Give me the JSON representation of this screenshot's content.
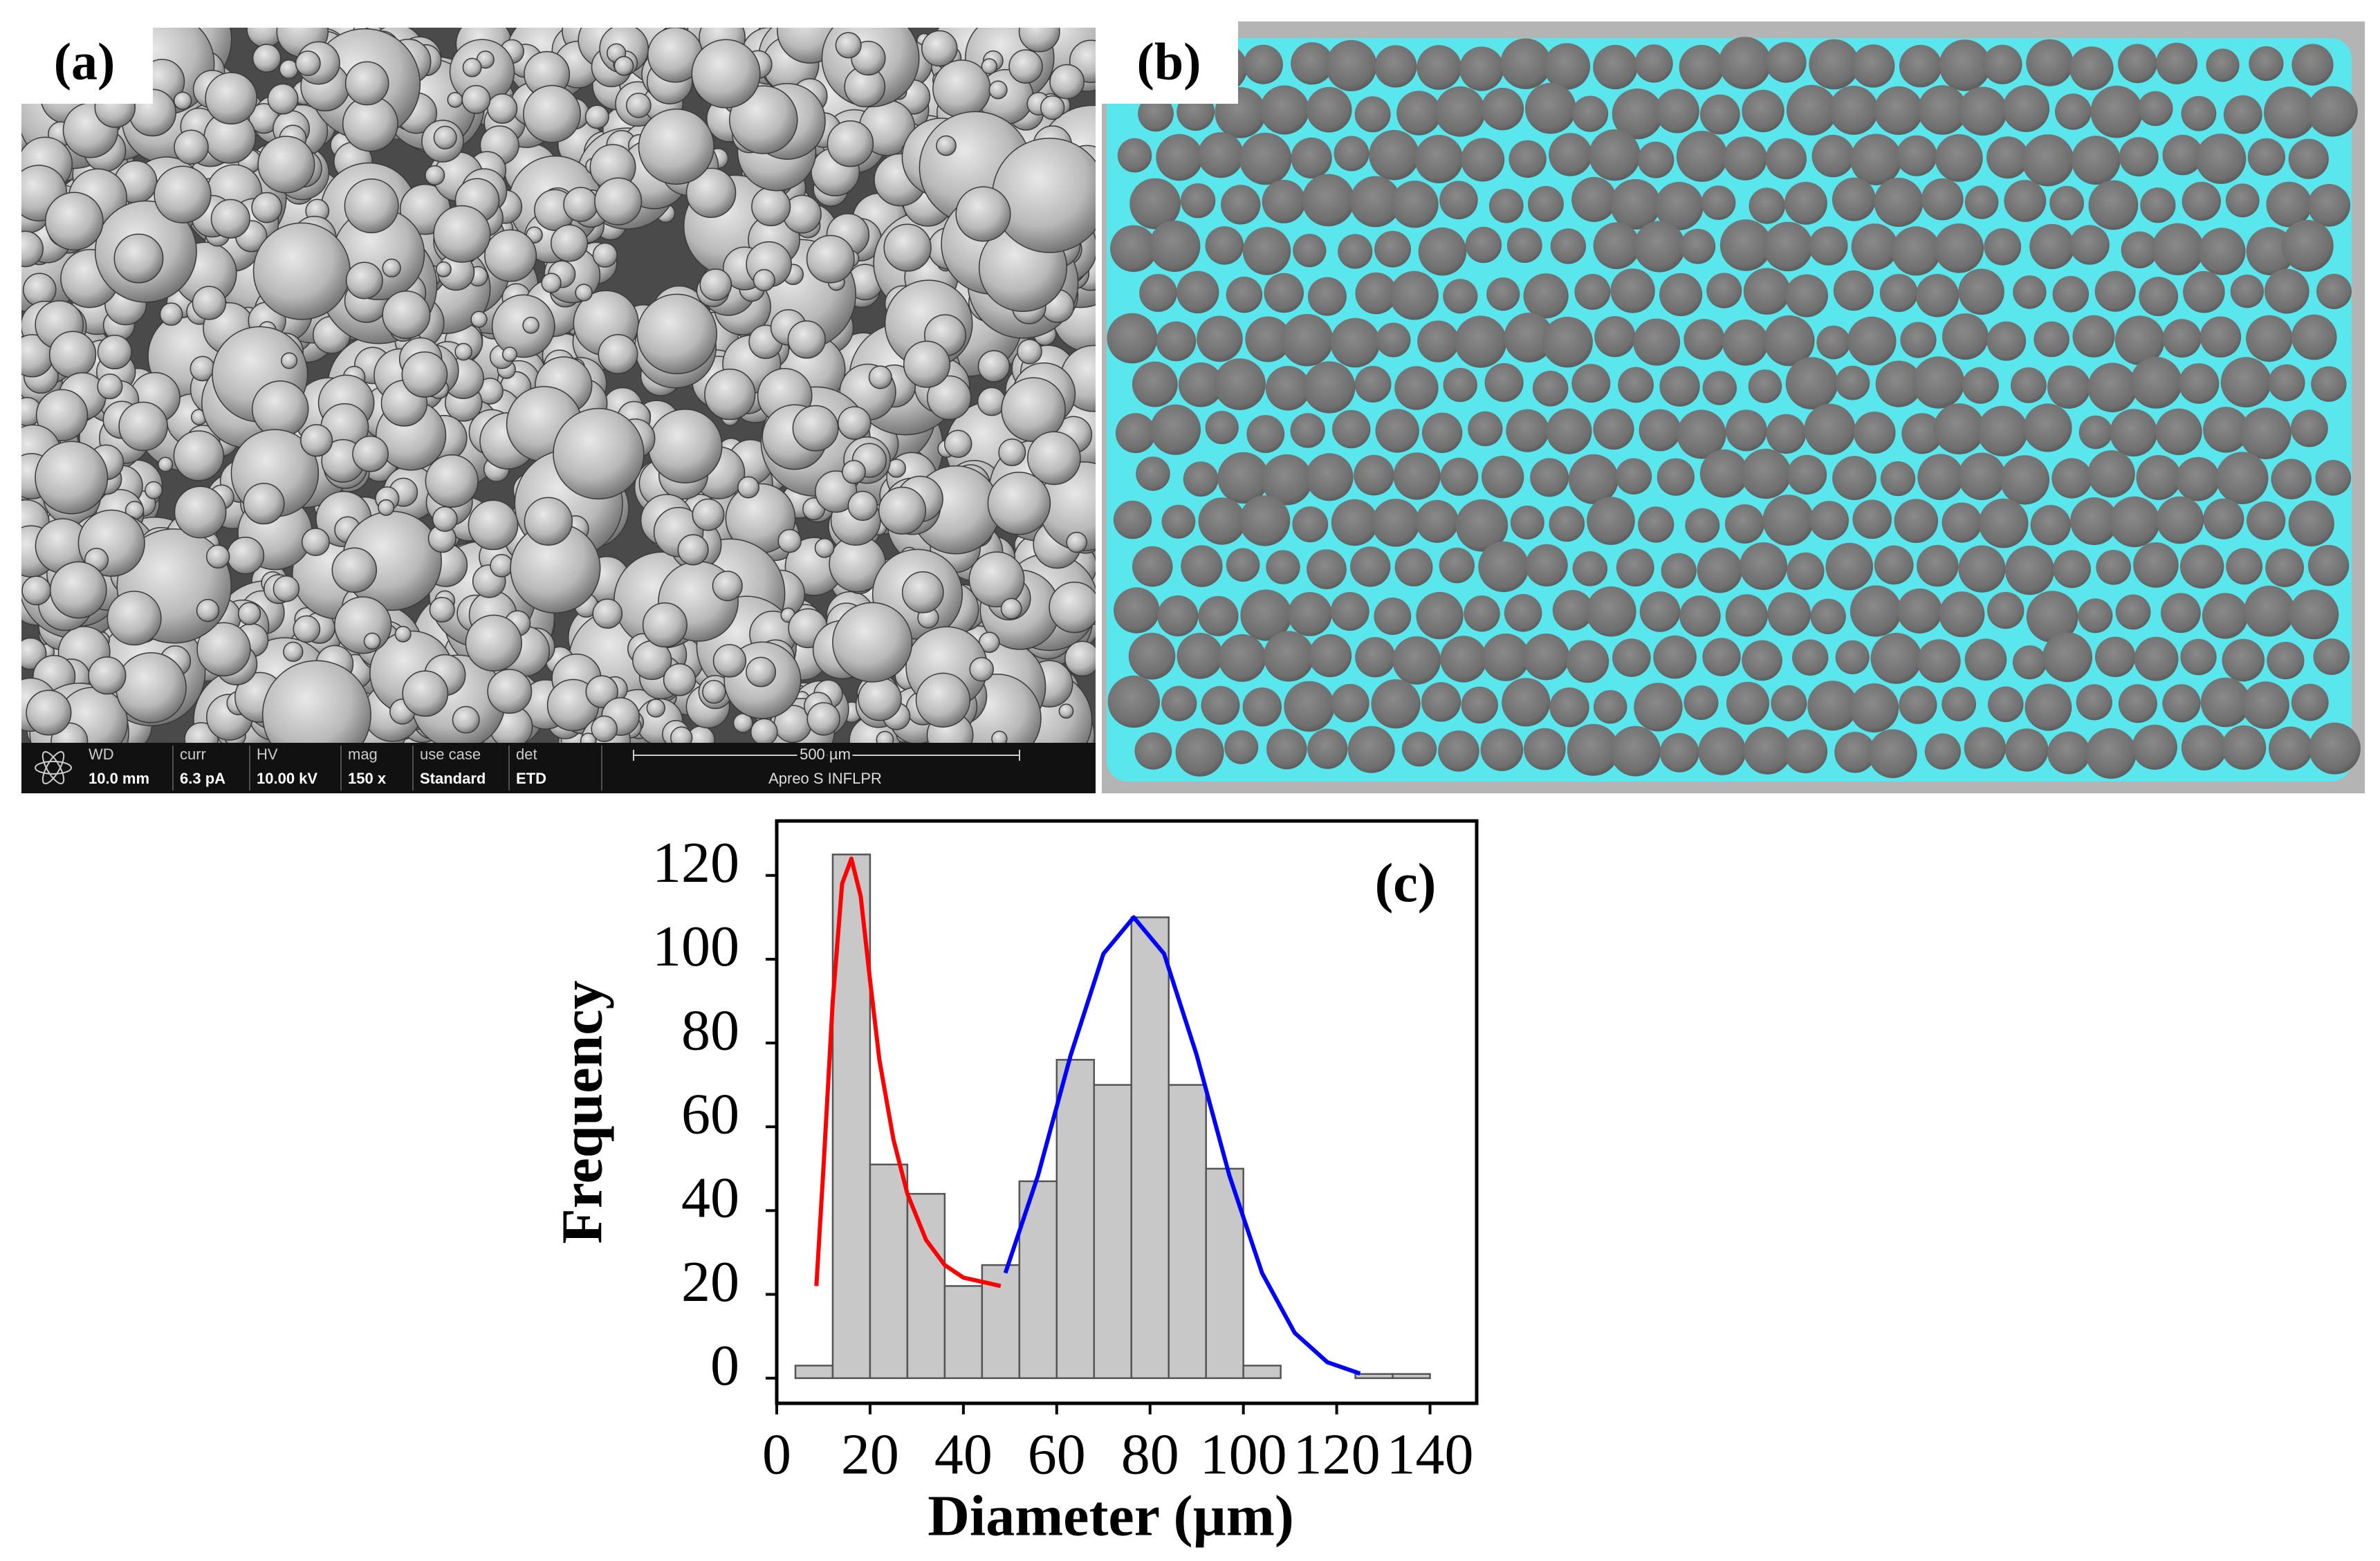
{
  "panel_a": {
    "label": "(a)",
    "info_bar": {
      "headers": [
        "WD",
        "curr",
        "HV",
        "mag",
        "use case",
        "det"
      ],
      "values": [
        "10.0 mm",
        "6.3 pA",
        "10.00 kV",
        "150 x",
        "Standard",
        "ETD"
      ],
      "scale_bar": "500 µm",
      "instrument": "Apreo S INFLPR"
    }
  },
  "panel_b": {
    "label": "(b)"
  },
  "chart_data": {
    "type": "histogram",
    "label": "(c)",
    "xlabel": "Diameter (µm)",
    "ylabel": "Frequency",
    "bins": [
      4,
      12,
      20,
      28,
      36,
      44,
      52,
      60,
      68,
      76,
      84,
      92,
      100,
      108,
      116,
      124,
      132,
      140
    ],
    "counts": [
      3,
      125,
      51,
      44,
      22,
      27,
      47,
      76,
      70,
      110,
      70,
      50,
      3,
      0,
      0,
      1,
      1
    ],
    "color": "#c8c8c8",
    "xlim": [
      0,
      150
    ],
    "xticks": [
      0,
      20,
      40,
      60,
      80,
      100,
      120,
      140
    ],
    "ylim": [
      -6,
      133
    ],
    "yticks": [
      0,
      20,
      40,
      60,
      80,
      100,
      120
    ],
    "series": [
      {
        "color": "#ff0000",
        "x": [
          8.5,
          10,
          12,
          14,
          16,
          18,
          20,
          22,
          25,
          28,
          32,
          36,
          40,
          44,
          48
        ],
        "values": [
          22,
          50,
          90,
          118,
          124,
          115,
          95,
          76,
          57,
          44,
          33,
          27,
          24,
          23,
          22
        ]
      },
      {
        "color": "#0000ff",
        "x": [
          49,
          56,
          63,
          70,
          76.5,
          83,
          90,
          97,
          104,
          111,
          118,
          125
        ],
        "values": [
          25.1,
          48.4,
          77.1,
          101.3,
          110,
          101.3,
          77.1,
          48.4,
          25.1,
          10.8,
          3.8,
          1.1
        ]
      }
    ]
  }
}
